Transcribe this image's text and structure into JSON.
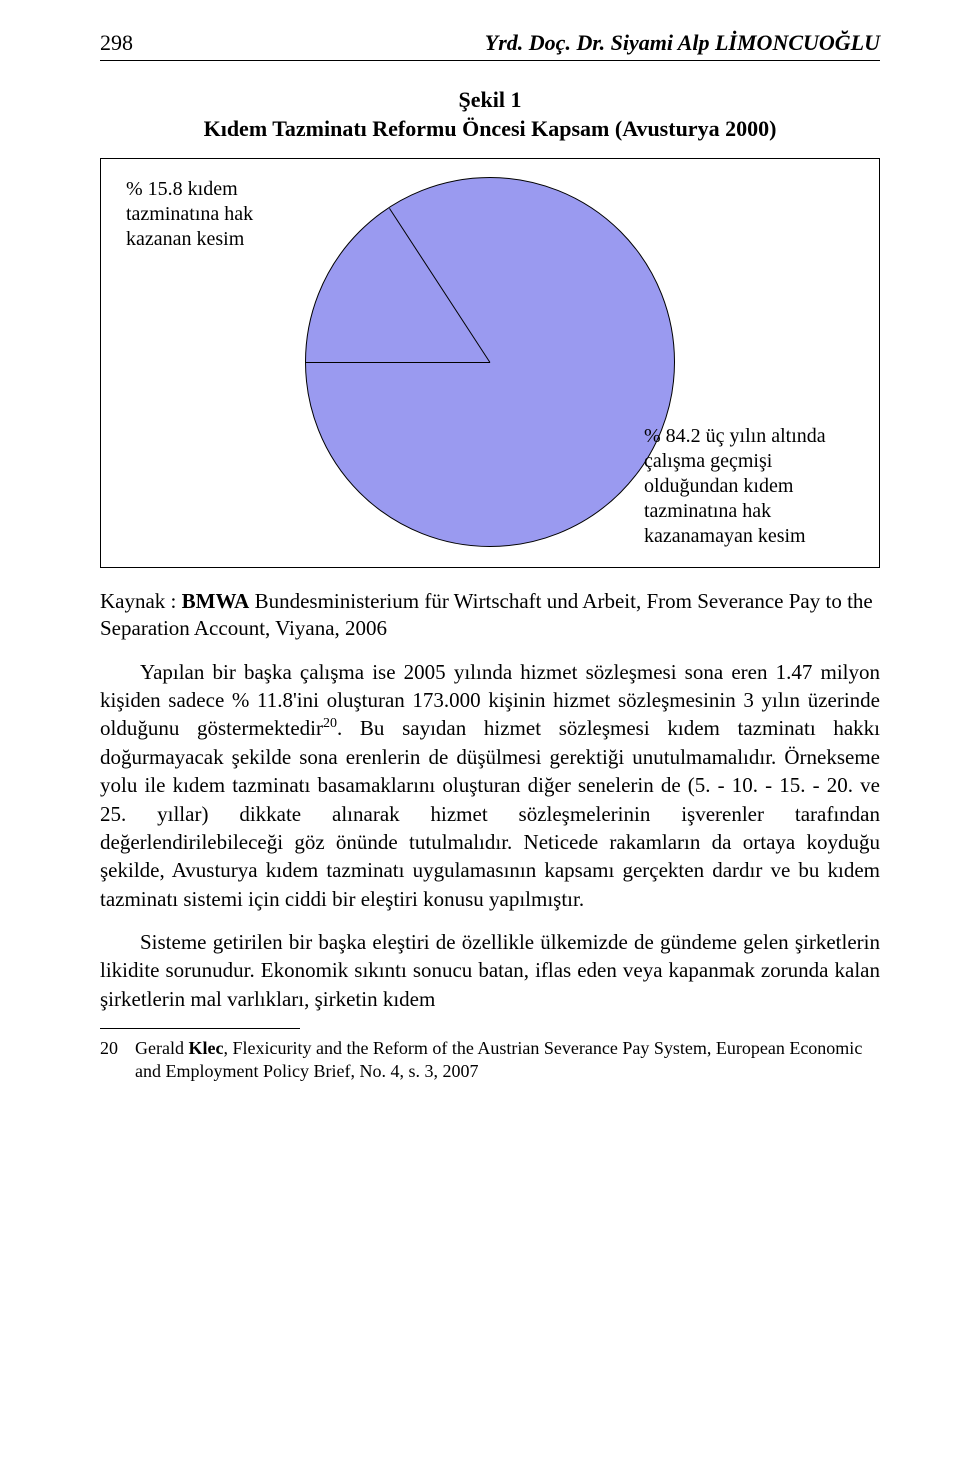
{
  "header": {
    "page_number": "298",
    "author": "Yrd. Doç. Dr. Siyami Alp LİMONCUOĞLU"
  },
  "figure": {
    "caption_line1": "Şekil 1",
    "caption_line2": "Kıdem Tazminatı Reformu Öncesi Kapsam (Avusturya 2000)",
    "type": "pie",
    "label_left": "% 15.8 kıdem tazminatına hak kazanan kesim",
    "label_right": "% 84.2 üç yılın altında çalışma geçmişi olduğundan kıdem tazminatına hak kazanamayan kesim",
    "slices": [
      {
        "value": 15.8,
        "color": "#8a2e5f"
      },
      {
        "value": 84.2,
        "color": "#9a9af0"
      }
    ],
    "start_angle_deg": -90,
    "border_color": "#000000",
    "background_color": "#ffffff"
  },
  "source": {
    "prefix": "Kaynak : ",
    "bold1": "BMWA",
    "rest": " Bundesministerium für Wirtschaft und Arbeit, From Severance Pay to the Separation Account, Viyana, 2006"
  },
  "paragraphs": {
    "p1a": "Yapılan bir başka çalışma ise 2005 yılında hizmet sözleşmesi sona eren 1.47 milyon kişiden sadece % 11.8'ini oluşturan 173.000 kişinin hizmet sözleşmesinin 3 yılın üzerinde olduğunu göstermektedir",
    "p1_sup": "20",
    "p1b": ". Bu sayıdan hizmet sözleşmesi kıdem tazminatı hakkı doğurmayacak şekilde sona erenlerin de düşülmesi gerektiği unutulmamalıdır. Örnekseme yolu ile kıdem tazminatı basamaklarını oluşturan diğer senelerin de (5. - 10. - 15. - 20. ve 25. yıllar) dikkate alınarak hizmet sözleşmelerinin işverenler tarafından değerlendirilebileceği göz önünde tutulmalıdır. Neticede rakamların da ortaya koyduğu şekilde, Avusturya kıdem tazminatı uygulamasının kapsamı gerçekten dardır ve bu kıdem tazminatı sistemi için ciddi bir eleştiri konusu yapılmıştır.",
    "p2": "Sisteme getirilen bir başka eleştiri de özellikle ülkemizde de gündeme gelen şirketlerin likidite sorunudur. Ekonomik sıkıntı sonucu batan, iflas eden veya kapanmak zorunda kalan şirketlerin mal varlıkları, şirketin kıdem"
  },
  "footnote": {
    "num": "20",
    "pre": "Gerald ",
    "bold": "Klec",
    "rest": ", Flexicurity and the Reform of the Austrian Severance Pay System, European Economic and Employment Policy Brief, No. 4, s. 3, 2007"
  }
}
